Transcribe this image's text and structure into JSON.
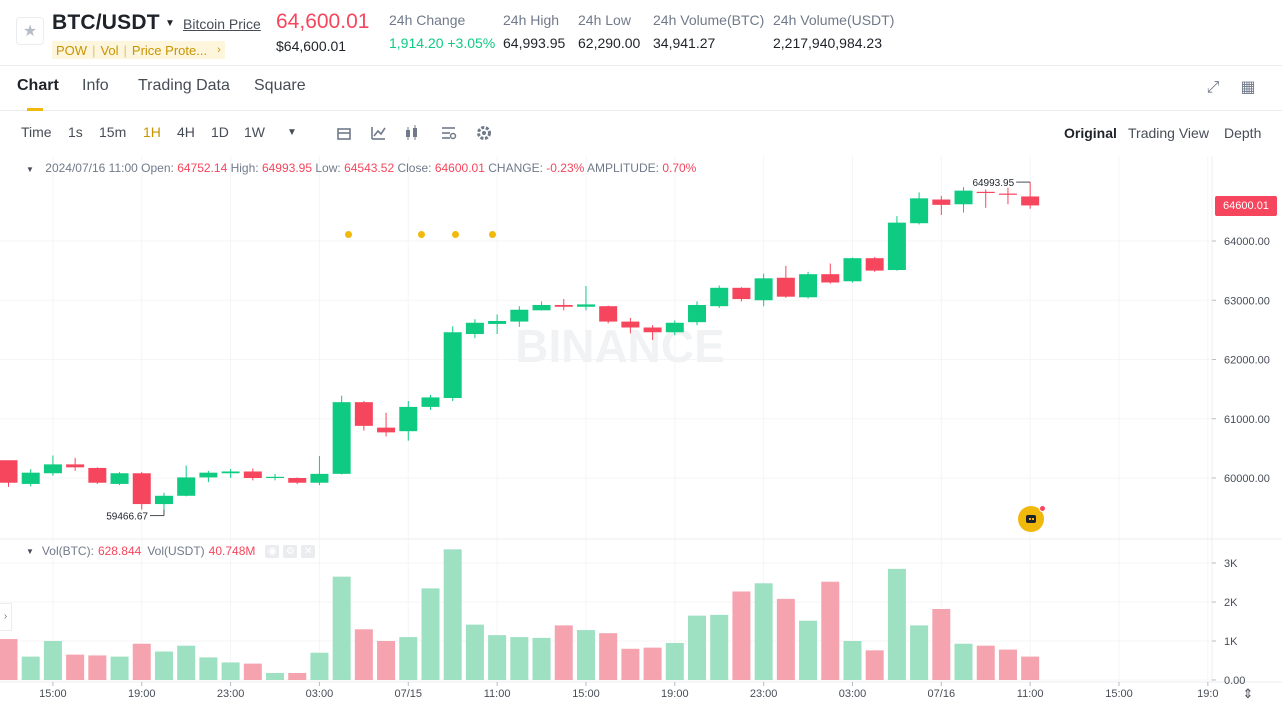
{
  "header": {
    "pair": "BTC/USDT",
    "link": "Bitcoin Price",
    "tags": [
      "POW",
      "Vol",
      "Price Prote..."
    ],
    "price": "64,600.01",
    "price_usd": "$64,600.01",
    "stats": [
      {
        "label": "24h Change",
        "value": "1,914.20 +3.05%",
        "green": true
      },
      {
        "label": "24h High",
        "value": "64,993.95"
      },
      {
        "label": "24h Low",
        "value": "62,290.00"
      },
      {
        "label": "24h Volume(BTC)",
        "value": "34,941.27"
      },
      {
        "label": "24h Volume(USDT)",
        "value": "2,217,940,984.23"
      }
    ]
  },
  "tabs": [
    "Chart",
    "Info",
    "Trading Data",
    "Square"
  ],
  "toolbar": {
    "intervals": [
      "Time",
      "1s",
      "15m",
      "1H",
      "4H",
      "1D",
      "1W"
    ],
    "active_interval": "1H",
    "views": [
      "Original",
      "Trading View",
      "Depth"
    ],
    "active_view": "Original"
  },
  "legend": {
    "date": "2024/07/16 11:00",
    "open_label": "Open:",
    "open": "64752.14",
    "high_label": "High:",
    "high": "64993.95",
    "low_label": "Low:",
    "low": "64543.52",
    "close_label": "Close:",
    "close": "64600.01",
    "change_label": "CHANGE:",
    "change": "-0.23%",
    "amp_label": "AMPLITUDE:",
    "amp": "0.70%"
  },
  "vol_legend": {
    "btc_label": "Vol(BTC):",
    "btc": "628.844",
    "usdt_label": "Vol(USDT)",
    "usdt": "40.748M"
  },
  "watermark": "BINANCE",
  "price_tag": "64600.01",
  "colors": {
    "up": "#0ecb81",
    "down": "#f6465d",
    "accent": "#f0b90b"
  },
  "chart_data": {
    "type": "candlestick",
    "y_ticks": [
      "64000.00",
      "63000.00",
      "62000.00",
      "61000.00",
      "60000.00"
    ],
    "vol_ticks": [
      "3K",
      "2K",
      "1K",
      "0.00"
    ],
    "x_ticks": [
      "15:00",
      "19:00",
      "23:00",
      "03:00",
      "07/15",
      "11:00",
      "15:00",
      "19:00",
      "23:00",
      "03:00",
      "07/16",
      "11:00",
      "15:00",
      "19:0"
    ],
    "high_annotation": "64993.95",
    "low_annotation": "59466.67",
    "candles": [
      [
        60300,
        59920,
        60280,
        59850
      ],
      [
        59900,
        60090,
        60150,
        59860
      ],
      [
        60080,
        60230,
        60380,
        60040
      ],
      [
        60230,
        60180,
        60340,
        60120
      ],
      [
        60170,
        59920,
        60180,
        59900
      ],
      [
        59900,
        60080,
        60100,
        59880
      ],
      [
        60080,
        59560,
        60100,
        59467
      ],
      [
        59560,
        59700,
        59750,
        59467
      ],
      [
        59700,
        60010,
        60210,
        59690
      ],
      [
        60010,
        60090,
        60120,
        59930
      ],
      [
        60080,
        60110,
        60150,
        60000
      ],
      [
        60110,
        60000,
        60160,
        59960
      ],
      [
        60000,
        60020,
        60070,
        59960
      ],
      [
        60000,
        59920,
        60010,
        59900
      ],
      [
        59920,
        60070,
        60370,
        59880
      ],
      [
        60070,
        61280,
        61390,
        60060
      ],
      [
        61280,
        60880,
        61300,
        60800
      ],
      [
        60850,
        60770,
        61100,
        60700
      ],
      [
        60790,
        61200,
        61300,
        60630
      ],
      [
        61200,
        61360,
        61400,
        61150
      ],
      [
        61350,
        62460,
        62560,
        61300
      ],
      [
        62430,
        62620,
        62680,
        62360
      ],
      [
        62600,
        62650,
        62760,
        62430
      ],
      [
        62640,
        62840,
        62900,
        62550
      ],
      [
        62830,
        62920,
        62980,
        62830
      ],
      [
        62920,
        62890,
        63020,
        62830
      ],
      [
        62890,
        62930,
        63240,
        62830
      ],
      [
        62900,
        62640,
        62910,
        62610
      ],
      [
        62640,
        62540,
        62700,
        62440
      ],
      [
        62540,
        62460,
        62580,
        62330
      ],
      [
        62460,
        62620,
        62660,
        62410
      ],
      [
        62630,
        62920,
        62980,
        62580
      ],
      [
        62900,
        63210,
        63250,
        62870
      ],
      [
        63210,
        63020,
        63220,
        62980
      ],
      [
        63000,
        63370,
        63450,
        62900
      ],
      [
        63380,
        63060,
        63580,
        63040
      ],
      [
        63050,
        63440,
        63480,
        63030
      ],
      [
        63440,
        63300,
        63620,
        63280
      ],
      [
        63320,
        63710,
        63720,
        63300
      ],
      [
        63710,
        63500,
        63730,
        63480
      ],
      [
        63510,
        64310,
        64420,
        63500
      ],
      [
        64300,
        64720,
        64820,
        64280
      ],
      [
        64700,
        64610,
        64760,
        64440
      ],
      [
        64620,
        64850,
        64910,
        64480
      ],
      [
        64830,
        64810,
        64870,
        64560
      ],
      [
        64800,
        64780,
        64900,
        64620
      ],
      [
        64752,
        64600,
        64994,
        64544
      ]
    ],
    "volumes_k": [
      1.05,
      0.6,
      1.0,
      0.65,
      0.63,
      0.6,
      0.93,
      0.73,
      0.88,
      0.58,
      0.45,
      0.42,
      0.18,
      0.18,
      0.7,
      2.65,
      1.3,
      1.0,
      1.1,
      2.35,
      3.35,
      1.42,
      1.15,
      1.1,
      1.08,
      1.4,
      1.28,
      1.2,
      0.8,
      0.83,
      0.95,
      1.65,
      1.67,
      2.27,
      2.48,
      2.08,
      1.52,
      2.52,
      1.0,
      0.76,
      2.85,
      1.4,
      1.82,
      0.93,
      0.88,
      0.78,
      0.6
    ]
  }
}
